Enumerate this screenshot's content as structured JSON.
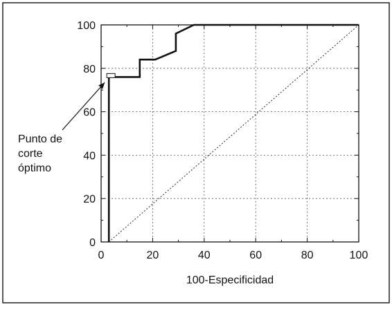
{
  "chart_data": {
    "type": "line",
    "title": "",
    "xlabel": "100-Especificidad",
    "ylabel": "",
    "xlim": [
      0,
      100
    ],
    "ylim": [
      0,
      100
    ],
    "x_ticks": [
      "0",
      "20",
      "40",
      "60",
      "80",
      "100"
    ],
    "y_ticks": [
      "0",
      "20",
      "40",
      "60",
      "80",
      "100"
    ],
    "grid": true,
    "series": [
      {
        "style": "solid-thick-step",
        "color": "#111111",
        "x": [
          3,
          3,
          15,
          15,
          21,
          21,
          29,
          29,
          36,
          36,
          100
        ],
        "y": [
          0,
          76,
          76,
          84,
          84,
          84,
          88,
          96,
          100,
          100,
          100
        ]
      },
      {
        "style": "dotted-diagonal",
        "color": "#111111",
        "x": [
          3,
          100
        ],
        "y": [
          0,
          100
        ]
      }
    ],
    "annotation": {
      "lines": [
        "Punto de",
        "corte",
        "óptimo"
      ],
      "point": [
        3,
        76
      ]
    }
  }
}
